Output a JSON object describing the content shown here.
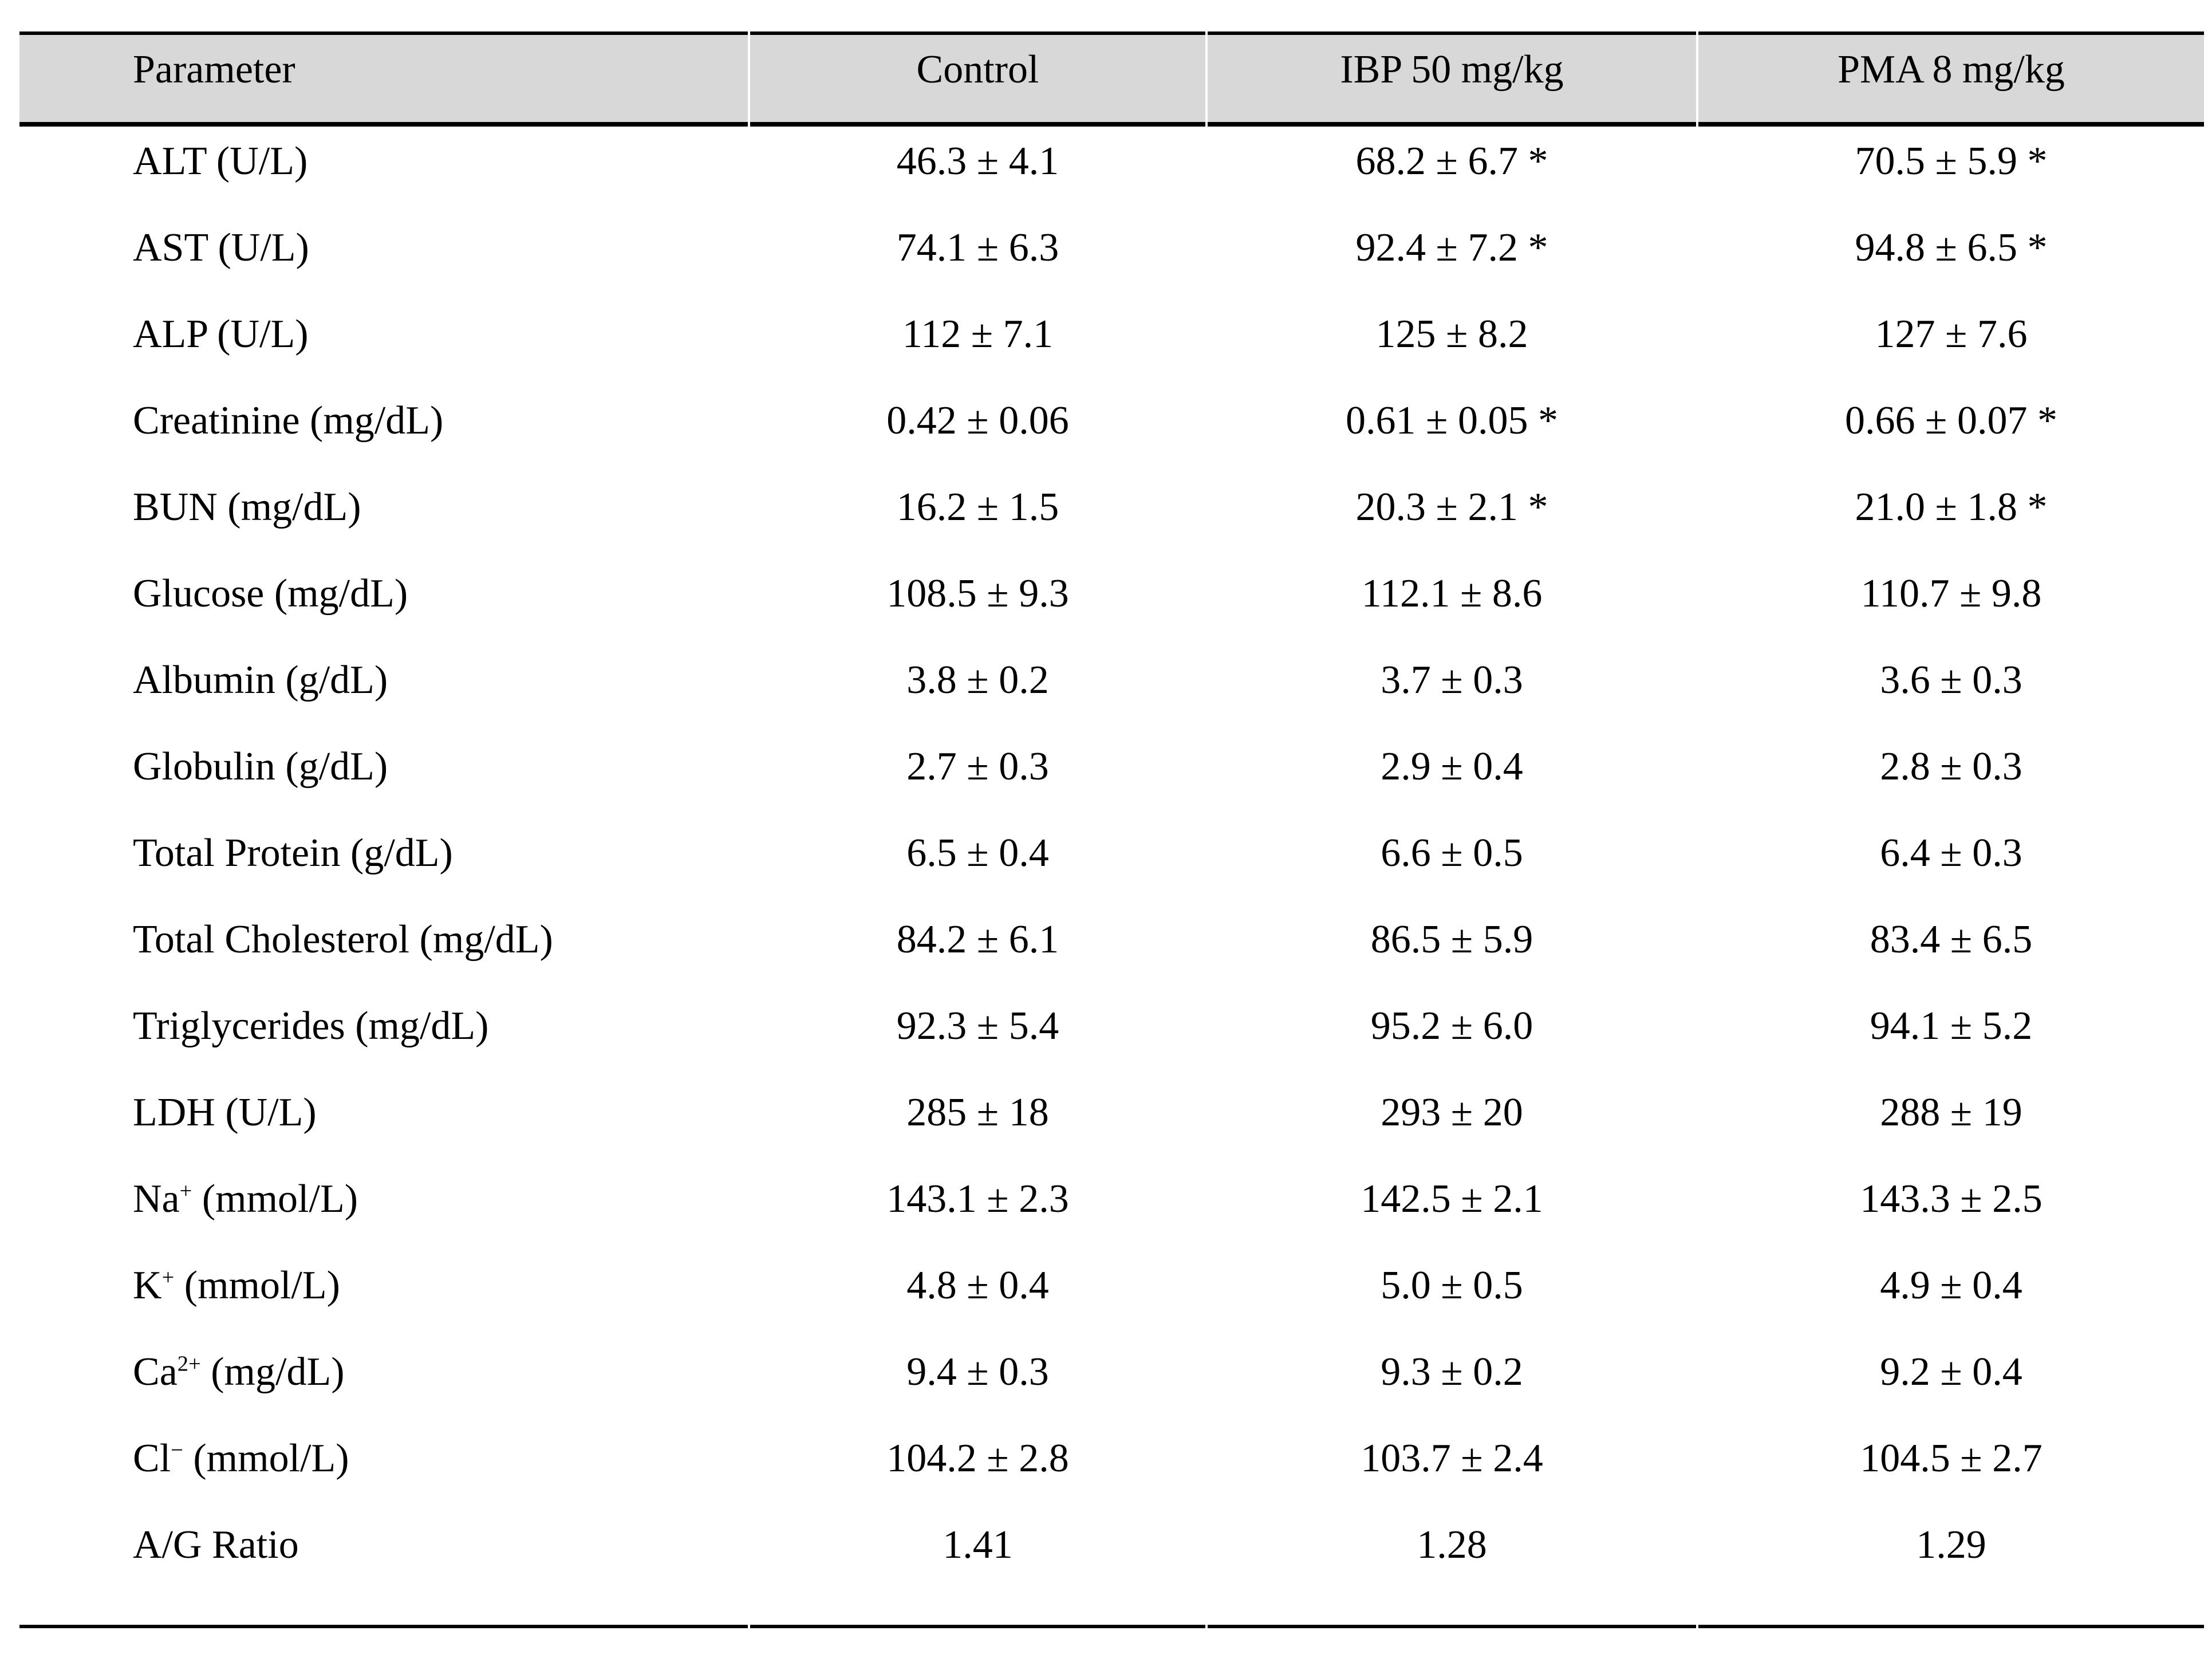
{
  "colors": {
    "header_background": "#d8d8d8",
    "border": "#000000",
    "text": "#000000",
    "page_background": "#ffffff"
  },
  "chart_data": {
    "type": "table",
    "columns": [
      "Parameter",
      "Control",
      "IBP 50 mg/kg",
      "PMA 8 mg/kg"
    ],
    "rows": [
      {
        "param_pre": "ALT (U/L)",
        "param_sup": "",
        "param_post": "",
        "control": "46.3 ± 4.1",
        "ibp": "68.2 ± 6.7 *",
        "pma": "70.5 ± 5.9 *"
      },
      {
        "param_pre": "AST (U/L)",
        "param_sup": "",
        "param_post": "",
        "control": "74.1 ± 6.3",
        "ibp": "92.4 ± 7.2 *",
        "pma": "94.8 ± 6.5 *"
      },
      {
        "param_pre": "ALP (U/L)",
        "param_sup": "",
        "param_post": "",
        "control": "112 ± 7.1",
        "ibp": "125 ± 8.2",
        "pma": "127 ± 7.6"
      },
      {
        "param_pre": "Creatinine (mg/dL)",
        "param_sup": "",
        "param_post": "",
        "control": "0.42 ± 0.06",
        "ibp": "0.61 ± 0.05 *",
        "pma": "0.66 ± 0.07 *"
      },
      {
        "param_pre": "BUN (mg/dL)",
        "param_sup": "",
        "param_post": "",
        "control": "16.2 ± 1.5",
        "ibp": "20.3 ± 2.1 *",
        "pma": "21.0 ± 1.8 *"
      },
      {
        "param_pre": "Glucose (mg/dL)",
        "param_sup": "",
        "param_post": "",
        "control": "108.5 ± 9.3",
        "ibp": "112.1 ± 8.6",
        "pma": "110.7 ± 9.8"
      },
      {
        "param_pre": "Albumin (g/dL)",
        "param_sup": "",
        "param_post": "",
        "control": "3.8 ± 0.2",
        "ibp": "3.7 ± 0.3",
        "pma": "3.6 ± 0.3"
      },
      {
        "param_pre": "Globulin (g/dL)",
        "param_sup": "",
        "param_post": "",
        "control": "2.7 ± 0.3",
        "ibp": "2.9 ± 0.4",
        "pma": "2.8 ± 0.3"
      },
      {
        "param_pre": "Total Protein (g/dL)",
        "param_sup": "",
        "param_post": "",
        "control": "6.5 ± 0.4",
        "ibp": "6.6 ± 0.5",
        "pma": "6.4 ± 0.3"
      },
      {
        "param_pre": "Total Cholesterol (mg/dL)",
        "param_sup": "",
        "param_post": "",
        "control": "84.2 ± 6.1",
        "ibp": "86.5 ± 5.9",
        "pma": "83.4 ± 6.5"
      },
      {
        "param_pre": "Triglycerides (mg/dL)",
        "param_sup": "",
        "param_post": "",
        "control": "92.3 ± 5.4",
        "ibp": "95.2 ± 6.0",
        "pma": "94.1 ± 5.2"
      },
      {
        "param_pre": "LDH (U/L)",
        "param_sup": "",
        "param_post": "",
        "control": "285 ± 18",
        "ibp": "293 ± 20",
        "pma": "288 ± 19"
      },
      {
        "param_pre": "Na",
        "param_sup": "+",
        "param_post": " (mmol/L)",
        "control": "143.1 ± 2.3",
        "ibp": "142.5 ± 2.1",
        "pma": "143.3 ± 2.5"
      },
      {
        "param_pre": "K",
        "param_sup": "+",
        "param_post": " (mmol/L)",
        "control": "4.8 ± 0.4",
        "ibp": "5.0 ± 0.5",
        "pma": "4.9 ± 0.4"
      },
      {
        "param_pre": "Ca",
        "param_sup": "2+",
        "param_post": " (mg/dL)",
        "control": "9.4 ± 0.3",
        "ibp": "9.3 ± 0.2",
        "pma": "9.2 ± 0.4"
      },
      {
        "param_pre": "Cl",
        "param_sup": "−",
        "param_post": " (mmol/L)",
        "control": "104.2 ± 2.8",
        "ibp": "103.7 ± 2.4",
        "pma": "104.5 ± 2.7"
      },
      {
        "param_pre": "A/G Ratio",
        "param_sup": "",
        "param_post": "",
        "control": "1.41",
        "ibp": "1.28",
        "pma": "1.29"
      }
    ]
  }
}
